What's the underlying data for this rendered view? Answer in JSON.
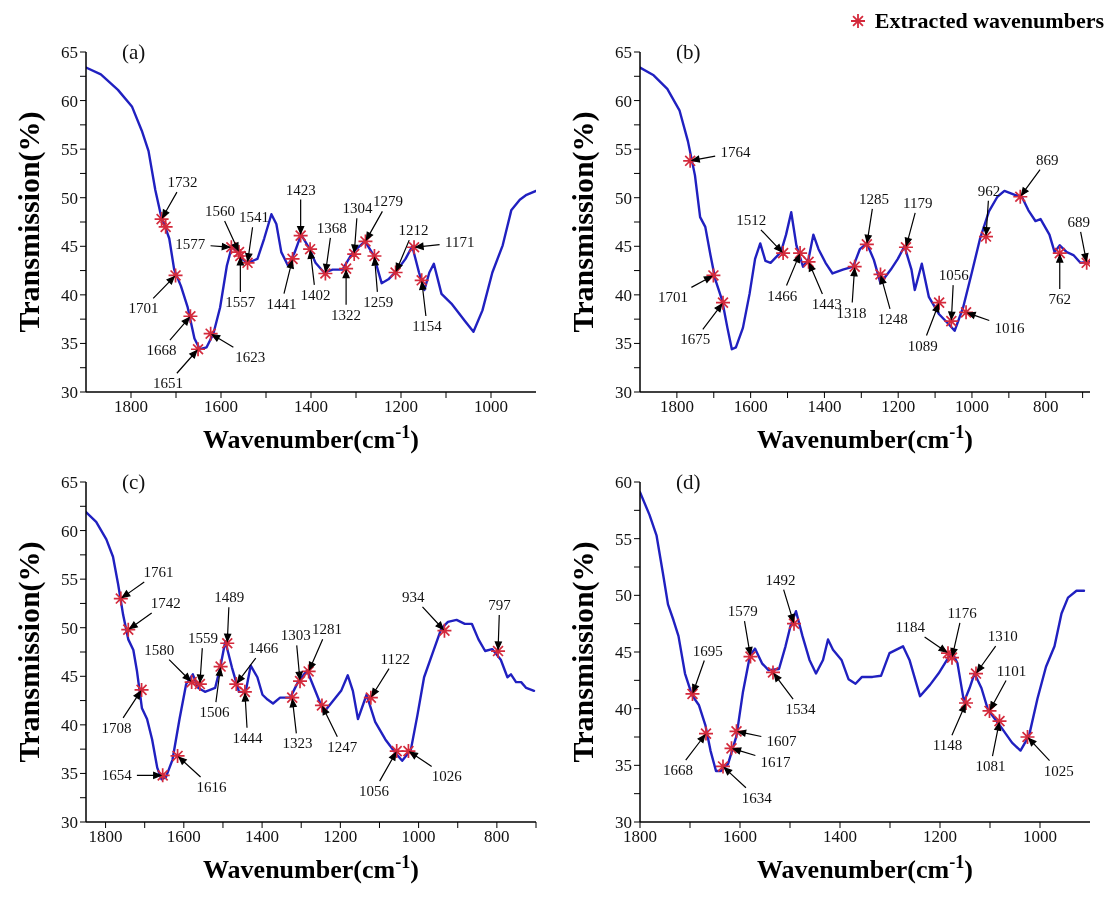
{
  "chart_data": [
    {
      "type": "line",
      "title": "(a)",
      "xlabel": "Wavenumber(cm$^{-1}$)",
      "ylabel": "Transmission(%)",
      "xlim": [
        1900,
        900
      ],
      "ylim": [
        30,
        65
      ],
      "xticks": [
        1800,
        {
          "value": 1700,
          "label": null
        },
        1600,
        {
          "value": 1500,
          "label": null
        },
        1400,
        {
          "value": 1300,
          "label": null
        },
        1200,
        {
          "value": 1100,
          "label": null
        },
        1000
      ],
      "yticks": [
        30,
        {
          "value": 32.5,
          "label": null
        },
        35,
        {
          "value": 37.5,
          "label": null
        },
        40,
        {
          "value": 42.5,
          "label": null
        },
        45,
        {
          "value": 47.5,
          "label": null
        },
        50,
        {
          "value": 52.5,
          "label": null
        },
        55,
        {
          "value": 57.5,
          "label": null
        },
        60,
        {
          "value": 62.5,
          "label": null
        },
        65
      ],
      "series": [
        {
          "type": "line",
          "color": "#2020c0",
          "marker": "none",
          "line_style": "solid",
          "x": [
            1900,
            1867,
            1829,
            1798,
            1776,
            1761,
            1746,
            1734,
            1715,
            1704,
            1689,
            1674,
            1659,
            1647,
            1632,
            1617,
            1602,
            1587,
            1575,
            1553,
            1541,
            1519,
            1504,
            1488,
            1477,
            1466,
            1451,
            1436,
            1422,
            1405,
            1390,
            1371,
            1352,
            1330,
            1307,
            1280,
            1261,
            1243,
            1228,
            1209,
            1190,
            1175,
            1160,
            1148,
            1137,
            1127,
            1110,
            1088,
            1058,
            1039,
            1019,
            997,
            974,
            955,
            936,
            921,
            900
          ],
          "values": [
            63.4,
            62.7,
            61.1,
            59.4,
            56.9,
            54.8,
            50.8,
            48.3,
            45.8,
            42.6,
            40.9,
            38.7,
            35.5,
            34.4,
            34.6,
            36.0,
            38.7,
            43.0,
            45.1,
            43.7,
            43.3,
            43.7,
            45.8,
            48.3,
            47.3,
            44.4,
            43.0,
            44.4,
            46.2,
            44.9,
            43.3,
            42.3,
            42.6,
            42.6,
            44.4,
            45.5,
            44.1,
            41.2,
            41.6,
            42.5,
            43.7,
            45.0,
            42.3,
            40.5,
            42.3,
            43.2,
            40.1,
            39.1,
            37.3,
            36.2,
            38.4,
            42.3,
            45.1,
            48.7,
            49.8,
            50.3,
            50.7
          ]
        },
        {
          "type": "scatter",
          "color": "#d42a3c",
          "marker": "cross",
          "x": [
            1732,
            1723,
            1701,
            1668,
            1651,
            1623,
            1577,
            1560,
            1557,
            1541,
            1441,
            1423,
            1402,
            1368,
            1322,
            1304,
            1279,
            1259,
            1212,
            1171,
            1154
          ],
          "values": [
            47.8,
            47.0,
            42.0,
            37.8,
            34.4,
            36.0,
            44.9,
            44.4,
            44.0,
            43.3,
            43.7,
            46.1,
            44.7,
            42.2,
            42.7,
            44.2,
            45.5,
            44.0,
            42.3,
            44.9,
            41.5
          ]
        }
      ],
      "annotations": [
        {
          "text": "1732",
          "x": 1732,
          "y": 47.8
        },
        {
          "text": "1701",
          "x": 1701,
          "y": 42.0
        },
        {
          "text": "1668",
          "x": 1668,
          "y": 37.8
        },
        {
          "text": "1651",
          "x": 1651,
          "y": 34.4
        },
        {
          "text": "1623",
          "x": 1623,
          "y": 36.0
        },
        {
          "text": "1577",
          "x": 1577,
          "y": 44.9
        },
        {
          "text": "1560",
          "x": 1560,
          "y": 44.4
        },
        {
          "text": "1557",
          "x": 1557,
          "y": 44.0
        },
        {
          "text": "1541",
          "x": 1541,
          "y": 43.3
        },
        {
          "text": "1441",
          "x": 1441,
          "y": 43.7
        },
        {
          "text": "1423",
          "x": 1423,
          "y": 46.1
        },
        {
          "text": "1402",
          "x": 1402,
          "y": 44.7
        },
        {
          "text": "1368",
          "x": 1368,
          "y": 42.2
        },
        {
          "text": "1322",
          "x": 1322,
          "y": 42.7
        },
        {
          "text": "1304",
          "x": 1304,
          "y": 44.2
        },
        {
          "text": "1279",
          "x": 1279,
          "y": 45.5
        },
        {
          "text": "1259",
          "x": 1259,
          "y": 44.0
        },
        {
          "text": "1212",
          "x": 1212,
          "y": 42.3
        },
        {
          "text": "1171",
          "x": 1171,
          "y": 44.9
        },
        {
          "text": "1154",
          "x": 1154,
          "y": 41.5
        }
      ]
    },
    {
      "type": "line",
      "title": "(b)",
      "xlabel": "Wavenumber(cm$^{-1}$)",
      "ylabel": "Transmission(%)",
      "xlim": [
        1900,
        680
      ],
      "ylim": [
        30,
        65
      ],
      "legend": "top right",
      "xticks": [
        1800,
        {
          "value": 1700,
          "label": null
        },
        1600,
        {
          "value": 1500,
          "label": null
        },
        1400,
        {
          "value": 1300,
          "label": null
        },
        1200,
        {
          "value": 1100,
          "label": null
        },
        1000,
        {
          "value": 900,
          "label": null
        },
        800,
        {
          "value": 700,
          "label": null
        }
      ],
      "yticks": [
        30,
        {
          "value": 32.5,
          "label": null
        },
        35,
        {
          "value": 37.5,
          "label": null
        },
        40,
        {
          "value": 42.5,
          "label": null
        },
        45,
        {
          "value": 47.5,
          "label": null
        },
        50,
        {
          "value": 52.5,
          "label": null
        },
        55,
        {
          "value": 57.5,
          "label": null
        },
        60,
        {
          "value": 62.5,
          "label": null
        },
        65
      ],
      "series": [
        {
          "type": "line",
          "color": "#2020c0",
          "marker": "none",
          "line_style": "solid",
          "x": [
            1900,
            1863,
            1826,
            1793,
            1770,
            1751,
            1737,
            1723,
            1709,
            1696,
            1677,
            1663,
            1651,
            1640,
            1621,
            1603,
            1588,
            1574,
            1560,
            1546,
            1518,
            1504,
            1490,
            1476,
            1458,
            1443,
            1430,
            1416,
            1397,
            1378,
            1350,
            1322,
            1304,
            1285,
            1266,
            1248,
            1220,
            1201,
            1183,
            1164,
            1155,
            1136,
            1117,
            1089,
            1061,
            1047,
            1024,
            1001,
            978,
            954,
            931,
            912,
            884,
            865,
            847,
            828,
            814,
            790,
            776,
            762,
            743,
            725,
            706,
            680
          ],
          "values": [
            63.4,
            62.6,
            61.2,
            59.0,
            55.8,
            52.3,
            48.0,
            47.0,
            44.1,
            41.6,
            39.4,
            36.6,
            34.4,
            34.6,
            36.6,
            40.1,
            43.7,
            45.3,
            43.5,
            43.3,
            44.4,
            46.2,
            48.5,
            45.1,
            42.9,
            43.7,
            46.2,
            44.7,
            43.3,
            42.2,
            42.6,
            42.9,
            44.7,
            45.3,
            43.6,
            41.2,
            42.6,
            43.7,
            45.0,
            42.6,
            40.5,
            43.2,
            39.8,
            38.0,
            36.9,
            36.3,
            38.7,
            42.2,
            45.8,
            48.6,
            50.1,
            50.7,
            50.3,
            50.1,
            48.7,
            47.6,
            47.8,
            46.2,
            44.4,
            45.1,
            44.4,
            44.1,
            43.3,
            43.4
          ]
        },
        {
          "type": "scatter",
          "name": "Extracted wavenumbers",
          "color": "#d42a3c",
          "marker": "cross",
          "x": [
            1764,
            1701,
            1675,
            1512,
            1466,
            1443,
            1318,
            1285,
            1248,
            1179,
            1089,
            1056,
            1016,
            962,
            869,
            762,
            689
          ],
          "values": [
            53.8,
            42.0,
            39.2,
            44.3,
            44.3,
            43.4,
            42.9,
            45.2,
            42.1,
            44.9,
            39.2,
            37.3,
            38.2,
            46.0,
            50.1,
            44.3,
            43.3
          ]
        }
      ],
      "annotations": [
        {
          "text": "1764",
          "x": 1764,
          "y": 53.8
        },
        {
          "text": "1701",
          "x": 1701,
          "y": 42.0
        },
        {
          "text": "1675",
          "x": 1675,
          "y": 39.2
        },
        {
          "text": "1512",
          "x": 1512,
          "y": 44.3
        },
        {
          "text": "1466",
          "x": 1466,
          "y": 44.3
        },
        {
          "text": "1443",
          "x": 1443,
          "y": 43.4
        },
        {
          "text": "1318",
          "x": 1318,
          "y": 42.9
        },
        {
          "text": "1285",
          "x": 1285,
          "y": 45.2
        },
        {
          "text": "1248",
          "x": 1248,
          "y": 42.1
        },
        {
          "text": "1179",
          "x": 1179,
          "y": 44.9
        },
        {
          "text": "1089",
          "x": 1089,
          "y": 39.2
        },
        {
          "text": "1056",
          "x": 1056,
          "y": 37.3
        },
        {
          "text": "1016",
          "x": 1016,
          "y": 38.2
        },
        {
          "text": "962",
          "x": 962,
          "y": 46.0
        },
        {
          "text": "869",
          "x": 869,
          "y": 50.1
        },
        {
          "text": "762",
          "x": 762,
          "y": 44.3
        },
        {
          "text": "689",
          "x": 689,
          "y": 43.3
        }
      ]
    },
    {
      "type": "line",
      "title": "(c)",
      "xlabel": "Wavenumber(cm$^{-1}$)",
      "ylabel": "Transmission(%)",
      "xlim": [
        1850,
        700
      ],
      "ylim": [
        30,
        65
      ],
      "xticks": [
        1800,
        {
          "value": 1700,
          "label": null
        },
        1600,
        {
          "value": 1500,
          "label": null
        },
        1400,
        {
          "value": 1300,
          "label": null
        },
        1200,
        {
          "value": 1100,
          "label": null
        },
        1000,
        {
          "value": 900,
          "label": null
        },
        800,
        {
          "value": 700,
          "label": null
        }
      ],
      "yticks": [
        30,
        {
          "value": 32.5,
          "label": null
        },
        35,
        {
          "value": 37.5,
          "label": null
        },
        40,
        {
          "value": 42.5,
          "label": null
        },
        45,
        {
          "value": 47.5,
          "label": null
        },
        50,
        {
          "value": 52.5,
          "label": null
        },
        55,
        {
          "value": 57.5,
          "label": null
        },
        60,
        {
          "value": 62.5,
          "label": null
        },
        65
      ],
      "series": [
        {
          "type": "line",
          "color": "#2020c0",
          "marker": "none",
          "line_style": "solid",
          "x": [
            1850,
            1824,
            1798,
            1781,
            1768,
            1755,
            1742,
            1729,
            1720,
            1707,
            1694,
            1681,
            1668,
            1657,
            1646,
            1629,
            1611,
            1594,
            1577,
            1563,
            1546,
            1520,
            1507,
            1494,
            1477,
            1459,
            1442,
            1429,
            1412,
            1399,
            1386,
            1372,
            1354,
            1328,
            1307,
            1285,
            1268,
            1242,
            1220,
            1198,
            1181,
            1168,
            1155,
            1133,
            1111,
            1085,
            1059,
            1042,
            1020,
            1003,
            986,
            964,
            942,
            925,
            903,
            882,
            864,
            847,
            830,
            812,
            790,
            773,
            764,
            751,
            738,
            725,
            705
          ],
          "values": [
            61.9,
            60.9,
            59.1,
            57.3,
            54.5,
            51.3,
            48.8,
            47.7,
            45.6,
            41.7,
            40.6,
            38.5,
            35.6,
            34.4,
            34.6,
            36.4,
            40.6,
            44.2,
            45.2,
            43.8,
            43.4,
            43.8,
            45.9,
            48.6,
            45.9,
            43.4,
            43.4,
            46.1,
            44.9,
            43.1,
            42.6,
            42.2,
            42.8,
            42.8,
            44.5,
            45.6,
            43.9,
            41.3,
            42.4,
            43.5,
            45.1,
            43.5,
            40.6,
            43.1,
            40.3,
            38.5,
            37.1,
            36.3,
            37.4,
            41.0,
            44.9,
            47.4,
            49.9,
            50.6,
            50.8,
            50.4,
            50.4,
            48.8,
            47.6,
            47.8,
            46.7,
            44.9,
            45.2,
            44.4,
            44.4,
            43.8,
            43.5
          ]
        },
        {
          "type": "scatter",
          "color": "#d42a3c",
          "marker": "cross",
          "x": [
            1761,
            1742,
            1708,
            1654,
            1616,
            1580,
            1559,
            1506,
            1489,
            1466,
            1444,
            1323,
            1303,
            1281,
            1247,
            1122,
            1056,
            1026,
            934,
            797
          ],
          "values": [
            53.0,
            49.8,
            43.6,
            34.8,
            36.8,
            44.4,
            44.2,
            46.0,
            48.4,
            44.2,
            43.4,
            42.8,
            44.5,
            45.5,
            42.0,
            42.8,
            37.3,
            37.3,
            49.7,
            47.6
          ]
        }
      ],
      "annotations": [
        {
          "text": "1761",
          "x": 1761,
          "y": 53.0
        },
        {
          "text": "1742",
          "x": 1742,
          "y": 49.8
        },
        {
          "text": "1708",
          "x": 1708,
          "y": 43.6
        },
        {
          "text": "1654",
          "x": 1654,
          "y": 34.8
        },
        {
          "text": "1616",
          "x": 1616,
          "y": 36.8
        },
        {
          "text": "1580",
          "x": 1580,
          "y": 44.4
        },
        {
          "text": "1559",
          "x": 1559,
          "y": 44.2
        },
        {
          "text": "1506",
          "x": 1506,
          "y": 46.0
        },
        {
          "text": "1489",
          "x": 1489,
          "y": 48.4
        },
        {
          "text": "1466",
          "x": 1466,
          "y": 44.2
        },
        {
          "text": "1444",
          "x": 1444,
          "y": 43.4
        },
        {
          "text": "1323",
          "x": 1323,
          "y": 42.8
        },
        {
          "text": "1303",
          "x": 1303,
          "y": 44.5
        },
        {
          "text": "1281",
          "x": 1281,
          "y": 45.5
        },
        {
          "text": "1247",
          "x": 1247,
          "y": 42.0
        },
        {
          "text": "1122",
          "x": 1122,
          "y": 42.8
        },
        {
          "text": "1056",
          "x": 1056,
          "y": 37.3
        },
        {
          "text": "1026",
          "x": 1026,
          "y": 37.3
        },
        {
          "text": "934",
          "x": 934,
          "y": 49.7
        },
        {
          "text": "797",
          "x": 797,
          "y": 47.6
        }
      ]
    },
    {
      "type": "line",
      "title": "(d)",
      "xlabel": "Wavenumber(cm$^{-1}$)",
      "ylabel": "Transmission(%)",
      "xlim": [
        1800,
        900
      ],
      "ylim": [
        30,
        60
      ],
      "xticks": [
        1800,
        {
          "value": 1700,
          "label": null
        },
        1600,
        {
          "value": 1500,
          "label": null
        },
        1400,
        {
          "value": 1300,
          "label": null
        },
        1200,
        {
          "value": 1100,
          "label": null
        },
        1000
      ],
      "yticks": [
        30,
        {
          "value": 32.5,
          "label": null
        },
        35,
        {
          "value": 37.5,
          "label": null
        },
        40,
        {
          "value": 42.5,
          "label": null
        },
        45,
        {
          "value": 47.5,
          "label": null
        },
        50,
        {
          "value": 52.5,
          "label": null
        },
        55,
        {
          "value": 57.5,
          "label": null
        },
        60
      ],
      "series": [
        {
          "type": "line",
          "color": "#2020c0",
          "marker": "none",
          "line_style": "solid",
          "x": [
            1800,
            1781,
            1767,
            1754,
            1744,
            1733,
            1723,
            1710,
            1696,
            1682,
            1669,
            1659,
            1648,
            1638,
            1624,
            1607,
            1594,
            1580,
            1570,
            1556,
            1543,
            1522,
            1509,
            1499,
            1488,
            1475,
            1461,
            1448,
            1434,
            1424,
            1414,
            1397,
            1383,
            1369,
            1356,
            1335,
            1318,
            1301,
            1274,
            1261,
            1240,
            1220,
            1203,
            1186,
            1176,
            1165,
            1152,
            1141,
            1131,
            1117,
            1104,
            1080,
            1056,
            1039,
            1022,
            1005,
            988,
            971,
            957,
            944,
            927,
            912
          ],
          "values": [
            59.1,
            57.1,
            55.3,
            51.9,
            49.2,
            47.8,
            46.4,
            43.1,
            41.2,
            40.3,
            38.5,
            36.3,
            34.5,
            34.5,
            35.1,
            37.6,
            41.5,
            44.7,
            45.3,
            44.0,
            43.4,
            43.5,
            45.5,
            47.3,
            48.6,
            46.4,
            44.3,
            43.1,
            44.3,
            46.1,
            45.2,
            44.3,
            42.6,
            42.2,
            42.8,
            42.8,
            42.9,
            44.9,
            45.5,
            44.3,
            41.1,
            42.1,
            43.1,
            44.3,
            45.0,
            44.0,
            40.6,
            41.8,
            43.1,
            41.8,
            39.9,
            38.5,
            37.0,
            36.3,
            37.6,
            40.9,
            43.7,
            45.5,
            48.4,
            49.8,
            50.4,
            50.4
          ]
        },
        {
          "type": "scatter",
          "color": "#d42a3c",
          "marker": "cross",
          "x": [
            1695,
            1668,
            1634,
            1617,
            1607,
            1579,
            1534,
            1492,
            1184,
            1176,
            1128,
            1148,
            1101,
            1081,
            1025
          ],
          "values": [
            41.3,
            37.8,
            34.9,
            36.5,
            38.0,
            44.6,
            43.2,
            47.5,
            44.9,
            44.5,
            43.1,
            40.5,
            39.8,
            38.9,
            37.5
          ]
        }
      ],
      "annotations": [
        {
          "text": "1695",
          "x": 1695,
          "y": 41.3
        },
        {
          "text": "1668",
          "x": 1668,
          "y": 37.8
        },
        {
          "text": "1634",
          "x": 1634,
          "y": 34.9
        },
        {
          "text": "1617",
          "x": 1617,
          "y": 36.5
        },
        {
          "text": "1607",
          "x": 1607,
          "y": 38.0
        },
        {
          "text": "1579",
          "x": 1579,
          "y": 44.6
        },
        {
          "text": "1534",
          "x": 1534,
          "y": 43.2
        },
        {
          "text": "1492",
          "x": 1492,
          "y": 47.5
        },
        {
          "text": "1184",
          "x": 1184,
          "y": 44.9
        },
        {
          "text": "1176",
          "x": 1176,
          "y": 44.5
        },
        {
          "text": "1310",
          "x": 1128,
          "y": 43.1
        },
        {
          "text": "1148",
          "x": 1148,
          "y": 40.5
        },
        {
          "text": "1101",
          "x": 1101,
          "y": 39.8
        },
        {
          "text": "1081",
          "x": 1081,
          "y": 38.9
        },
        {
          "text": "1025",
          "x": 1025,
          "y": 37.5
        }
      ]
    }
  ]
}
